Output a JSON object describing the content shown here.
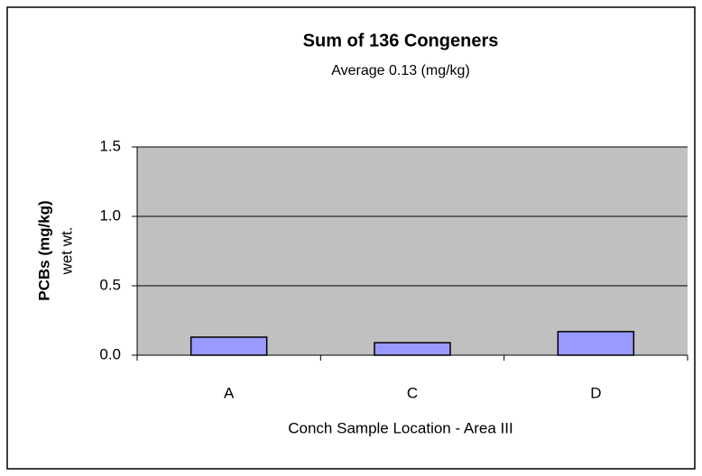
{
  "chart_data": {
    "type": "bar",
    "title": "Sum of 136 Congeners",
    "subtitle": "Average 0.13 (mg/kg)",
    "xlabel": "Conch Sample Location - Area III",
    "ylabel": [
      "PCBs (mg/kg)",
      "wet wt."
    ],
    "categories": [
      "A",
      "C",
      "D"
    ],
    "values": [
      0.13,
      0.09,
      0.17
    ],
    "color": "#9999ff",
    "ylim": [
      0,
      1.5
    ],
    "yticks": [
      {
        "value": 0,
        "label": "0.0"
      },
      {
        "value": 0.5,
        "label": "0.5"
      },
      {
        "value": 1,
        "label": "1.0"
      },
      {
        "value": 1.5,
        "label": "1.5"
      }
    ],
    "grid": true
  }
}
